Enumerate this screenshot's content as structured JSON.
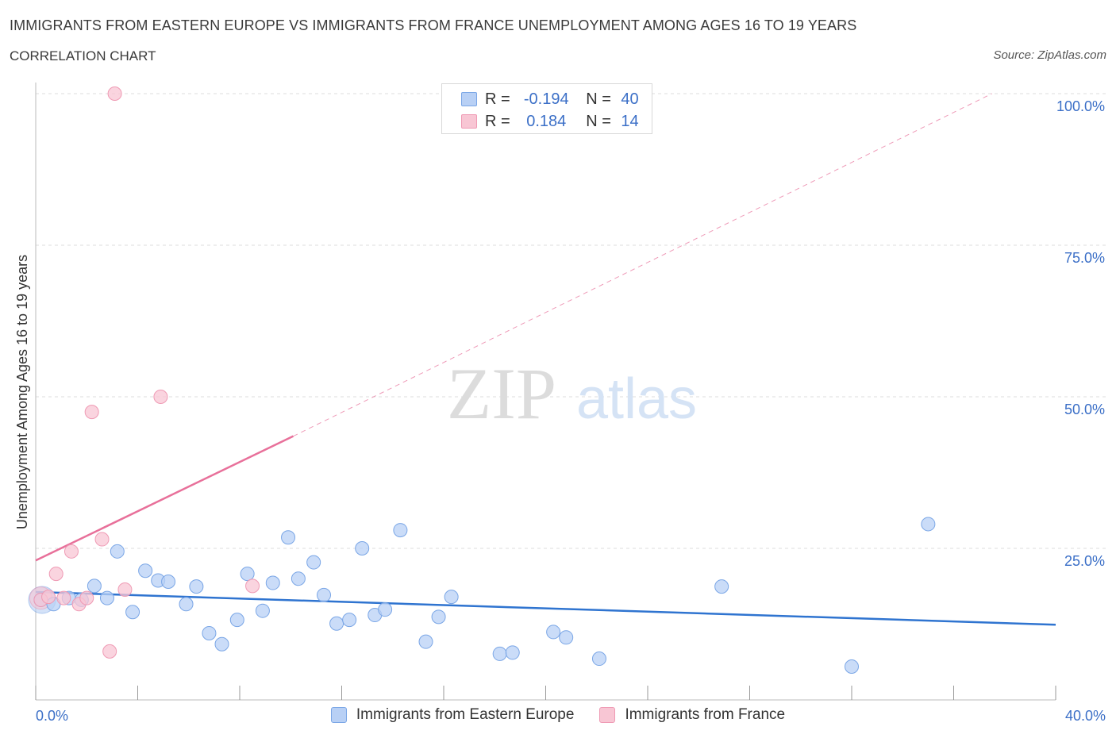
{
  "header": {
    "title": "IMMIGRANTS FROM EASTERN EUROPE VS IMMIGRANTS FROM FRANCE UNEMPLOYMENT AMONG AGES 16 TO 19 YEARS",
    "subtitle": "CORRELATION CHART",
    "source": "Source: ZipAtlas.com"
  },
  "watermark": {
    "zip": "ZIP",
    "atlas": "atlas"
  },
  "legend": {
    "rows": [
      {
        "r_label": "R =",
        "r_value": "-0.194",
        "n_label": "N =",
        "n_value": "40"
      },
      {
        "r_label": "R =",
        "r_value": "0.184",
        "n_label": "N =",
        "n_value": "14"
      }
    ]
  },
  "colors": {
    "blue_fill": "#b8d0f5",
    "blue_stroke": "#7aa6e6",
    "blue_line": "#2f74d0",
    "pink_fill": "#f8c6d4",
    "pink_stroke": "#ef9ab4",
    "pink_line": "#e8709a",
    "axis_label": "#3b6fc7",
    "grid": "#dcdcdc"
  },
  "chart_data": {
    "type": "scatter",
    "title": "IMMIGRANTS FROM EASTERN EUROPE VS IMMIGRANTS FROM FRANCE UNEMPLOYMENT AMONG AGES 16 TO 19 YEARS",
    "xlabel": "",
    "ylabel": "Unemployment Among Ages 16 to 19 years",
    "xlim": [
      0,
      40
    ],
    "ylim": [
      0,
      100
    ],
    "x_tick_labels": [
      "0.0%",
      "40.0%"
    ],
    "y_tick_values": [
      25,
      50,
      75,
      100
    ],
    "y_tick_labels": [
      "25.0%",
      "50.0%",
      "75.0%",
      "100.0%"
    ],
    "series": [
      {
        "name": "Immigrants from Eastern Europe",
        "points": [
          [
            0.2,
            16.5
          ],
          [
            0.7,
            15.8
          ],
          [
            1.3,
            16.8
          ],
          [
            1.8,
            16.5
          ],
          [
            2.3,
            18.8
          ],
          [
            2.8,
            16.8
          ],
          [
            3.2,
            24.5
          ],
          [
            3.8,
            14.5
          ],
          [
            4.3,
            21.3
          ],
          [
            4.8,
            19.7
          ],
          [
            5.2,
            19.5
          ],
          [
            5.9,
            15.8
          ],
          [
            6.3,
            18.7
          ],
          [
            6.8,
            11.0
          ],
          [
            7.3,
            9.2
          ],
          [
            7.9,
            13.2
          ],
          [
            8.3,
            20.8
          ],
          [
            8.9,
            14.7
          ],
          [
            9.3,
            19.3
          ],
          [
            9.9,
            26.8
          ],
          [
            10.3,
            20.0
          ],
          [
            10.9,
            22.7
          ],
          [
            11.3,
            17.3
          ],
          [
            11.8,
            12.6
          ],
          [
            12.3,
            13.2
          ],
          [
            12.8,
            25.0
          ],
          [
            13.3,
            14.0
          ],
          [
            13.7,
            14.9
          ],
          [
            14.3,
            28.0
          ],
          [
            15.3,
            9.6
          ],
          [
            15.8,
            13.7
          ],
          [
            16.3,
            17.0
          ],
          [
            18.2,
            7.6
          ],
          [
            18.7,
            7.8
          ],
          [
            20.3,
            11.2
          ],
          [
            20.8,
            10.3
          ],
          [
            22.1,
            6.8
          ],
          [
            26.9,
            18.7
          ],
          [
            32.0,
            5.5
          ],
          [
            35.0,
            29.0
          ]
        ],
        "trend": {
          "x0": 0,
          "y0": 17.8,
          "x1": 40,
          "y1": 12.4
        }
      },
      {
        "name": "Immigrants from France",
        "points": [
          [
            0.2,
            16.5
          ],
          [
            0.5,
            17.0
          ],
          [
            0.8,
            20.8
          ],
          [
            1.1,
            16.8
          ],
          [
            1.4,
            24.5
          ],
          [
            1.7,
            15.8
          ],
          [
            2.0,
            16.8
          ],
          [
            2.2,
            47.5
          ],
          [
            2.6,
            26.5
          ],
          [
            2.9,
            8.0
          ],
          [
            3.1,
            100.0
          ],
          [
            3.5,
            18.2
          ],
          [
            4.9,
            50.0
          ],
          [
            8.5,
            18.8
          ]
        ],
        "trend": {
          "x0": 0,
          "y0": 23.0,
          "x1": 10.1,
          "y1": 43.5,
          "dashed_to_x": 37.5,
          "dashed_to_y": 100
        }
      }
    ]
  },
  "bottom_legend": {
    "items": [
      {
        "label": "Immigrants from Eastern Europe"
      },
      {
        "label": "Immigrants from France"
      }
    ]
  }
}
